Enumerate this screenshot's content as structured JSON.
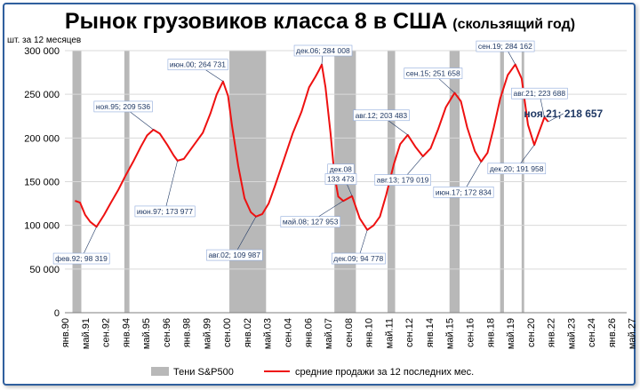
{
  "chart_data": {
    "type": "line",
    "title": "Рынок грузовиков класса 8 в США",
    "subtitle": "(скользящий год)",
    "ylabel": "шт. за 12 месяцев",
    "xlabel": "",
    "ylim": [
      0,
      300000
    ],
    "y_ticks": [
      "0",
      "50 000",
      "100 000",
      "150 000",
      "200 000",
      "250 000",
      "300 000"
    ],
    "x_range": [
      "1990-01",
      "2027-01"
    ],
    "x_ticks": [
      {
        "label": "янв.90",
        "date": "1990-01"
      },
      {
        "label": "май.91",
        "date": "1991-05"
      },
      {
        "label": "сен.92",
        "date": "1992-09"
      },
      {
        "label": "янв.94",
        "date": "1994-01"
      },
      {
        "label": "май.95",
        "date": "1995-05"
      },
      {
        "label": "сен.96",
        "date": "1996-09"
      },
      {
        "label": "янв.98",
        "date": "1998-01"
      },
      {
        "label": "май.99",
        "date": "1999-05"
      },
      {
        "label": "сен.00",
        "date": "2000-09"
      },
      {
        "label": "янв.02",
        "date": "2002-01"
      },
      {
        "label": "май.03",
        "date": "2003-05"
      },
      {
        "label": "сен.04",
        "date": "2004-09"
      },
      {
        "label": "янв.06",
        "date": "2006-01"
      },
      {
        "label": "май.07",
        "date": "2007-05"
      },
      {
        "label": "сен.08",
        "date": "2008-09"
      },
      {
        "label": "янв.10",
        "date": "2010-01"
      },
      {
        "label": "май.11",
        "date": "2011-05"
      },
      {
        "label": "сен.12",
        "date": "2012-09"
      },
      {
        "label": "янв.14",
        "date": "2014-01"
      },
      {
        "label": "май.15",
        "date": "2015-05"
      },
      {
        "label": "сен.16",
        "date": "2016-09"
      },
      {
        "label": "янв.18",
        "date": "2018-01"
      },
      {
        "label": "май.19",
        "date": "2019-05"
      },
      {
        "label": "сен.20",
        "date": "2020-09"
      },
      {
        "label": "янв.22",
        "date": "2022-01"
      },
      {
        "label": "май.23",
        "date": "2023-05"
      },
      {
        "label": "сен.24",
        "date": "2024-09"
      },
      {
        "label": "янв.26",
        "date": "2026-01"
      },
      {
        "label": "май.27",
        "date": "2027-05"
      }
    ],
    "grid": "horizontal",
    "legend_position": "bottom",
    "shade_color": "#b8b8b8",
    "line_color": "#ee1111",
    "annotation_color": "#1f3864",
    "shades": [
      {
        "from": "1990-07",
        "to": "1991-02"
      },
      {
        "from": "1993-12",
        "to": "1994-04"
      },
      {
        "from": "2000-11",
        "to": "2003-04"
      },
      {
        "from": "2007-10",
        "to": "2009-03"
      },
      {
        "from": "2011-04",
        "to": "2011-10"
      },
      {
        "from": "2015-05",
        "to": "2016-01"
      },
      {
        "from": "2018-09",
        "to": "2018-12"
      },
      {
        "from": "2020-02",
        "to": "2020-04"
      }
    ],
    "series": [
      {
        "name": "средние продажи за 12 последних мес.",
        "points": [
          [
            "1990-09",
            128000
          ],
          [
            "1991-01",
            126000
          ],
          [
            "1991-05",
            112000
          ],
          [
            "1991-09",
            104000
          ],
          [
            "1992-02",
            98319
          ],
          [
            "1992-08",
            112000
          ],
          [
            "1993-01",
            125000
          ],
          [
            "1993-07",
            140000
          ],
          [
            "1994-01",
            157000
          ],
          [
            "1994-07",
            173000
          ],
          [
            "1995-01",
            190000
          ],
          [
            "1995-06",
            203000
          ],
          [
            "1995-11",
            209536
          ],
          [
            "1996-04",
            205000
          ],
          [
            "1996-10",
            192000
          ],
          [
            "1997-03",
            180000
          ],
          [
            "1997-06",
            173977
          ],
          [
            "1997-11",
            176000
          ],
          [
            "1998-04",
            186000
          ],
          [
            "1998-09",
            196000
          ],
          [
            "1999-02",
            206000
          ],
          [
            "1999-08",
            228000
          ],
          [
            "2000-01",
            250000
          ],
          [
            "2000-06",
            264731
          ],
          [
            "2000-10",
            248000
          ],
          [
            "2001-01",
            215000
          ],
          [
            "2001-06",
            168000
          ],
          [
            "2001-11",
            131000
          ],
          [
            "2002-04",
            115000
          ],
          [
            "2002-08",
            109987
          ],
          [
            "2003-01",
            113000
          ],
          [
            "2003-06",
            125000
          ],
          [
            "2003-11",
            145000
          ],
          [
            "2004-06",
            175000
          ],
          [
            "2005-01",
            205000
          ],
          [
            "2005-08",
            230000
          ],
          [
            "2006-02",
            258000
          ],
          [
            "2006-07",
            270000
          ],
          [
            "2006-10",
            278000
          ],
          [
            "2006-12",
            284008
          ],
          [
            "2007-03",
            258000
          ],
          [
            "2007-07",
            205000
          ],
          [
            "2007-10",
            158000
          ],
          [
            "2008-01",
            133000
          ],
          [
            "2008-05",
            127953
          ],
          [
            "2008-12",
            133473
          ],
          [
            "2009-06",
            108000
          ],
          [
            "2009-12",
            94778
          ],
          [
            "2010-05",
            100000
          ],
          [
            "2010-10",
            110000
          ],
          [
            "2011-03",
            135000
          ],
          [
            "2011-09",
            170000
          ],
          [
            "2012-02",
            193000
          ],
          [
            "2012-08",
            203483
          ],
          [
            "2013-02",
            190000
          ],
          [
            "2013-08",
            179019
          ],
          [
            "2014-02",
            188000
          ],
          [
            "2014-08",
            210000
          ],
          [
            "2015-02",
            235000
          ],
          [
            "2015-09",
            251658
          ],
          [
            "2016-02",
            242000
          ],
          [
            "2016-07",
            212000
          ],
          [
            "2017-01",
            185000
          ],
          [
            "2017-06",
            172834
          ],
          [
            "2017-11",
            183000
          ],
          [
            "2018-04",
            212000
          ],
          [
            "2018-09",
            245000
          ],
          [
            "2019-03",
            272000
          ],
          [
            "2019-09",
            284162
          ],
          [
            "2020-02",
            268000
          ],
          [
            "2020-07",
            215000
          ],
          [
            "2020-12",
            191958
          ],
          [
            "2021-04",
            208000
          ],
          [
            "2021-08",
            223688
          ],
          [
            "2021-11",
            218657
          ]
        ]
      }
    ],
    "annotations": [
      {
        "text": "фев.92; 98 319",
        "date": "1992-02",
        "value": 98319,
        "label_date": "1991-02",
        "label_value": 62000
      },
      {
        "text": "ноя.95; 209 536",
        "date": "1995-11",
        "value": 209536,
        "label_date": "1993-11",
        "label_value": 236000
      },
      {
        "text": "июн.97; 173 977",
        "date": "1997-06",
        "value": 173977,
        "label_date": "1996-08",
        "label_value": 116000
      },
      {
        "text": "июн.00; 264 731",
        "date": "2000-06",
        "value": 264731,
        "label_date": "1998-10",
        "label_value": 284000
      },
      {
        "text": "авг.02; 109 987",
        "date": "2002-08",
        "value": 109987,
        "label_date": "2001-03",
        "label_value": 66000
      },
      {
        "text": "дек.06; 284 008",
        "date": "2006-12",
        "value": 284008,
        "label_date": "2007-01",
        "label_value": 300000
      },
      {
        "text": "май.08; 127 953",
        "date": "2008-05",
        "value": 127953,
        "label_date": "2006-03",
        "label_value": 104000
      },
      {
        "text": "дек.08",
        "date": "2008-12",
        "value": 133473,
        "label_date": "2008-03",
        "label_value": 164000
      },
      {
        "text": "133 473",
        "date": "",
        "value": null,
        "label_date": "2008-03",
        "label_value": 153000
      },
      {
        "text": "дек.09; 94 778",
        "date": "2009-12",
        "value": 94778,
        "label_date": "2009-05",
        "label_value": 62000
      },
      {
        "text": "авг.12; 203 483",
        "date": "2012-08",
        "value": 203483,
        "label_date": "2010-11",
        "label_value": 226000
      },
      {
        "text": "авг.13; 179 019",
        "date": "2013-08",
        "value": 179019,
        "label_date": "2012-04",
        "label_value": 152000
      },
      {
        "text": "сен.15; 251 658",
        "date": "2015-09",
        "value": 251658,
        "label_date": "2014-04",
        "label_value": 274000
      },
      {
        "text": "июн.17; 172 834",
        "date": "2017-06",
        "value": 172834,
        "label_date": "2016-04",
        "label_value": 138000
      },
      {
        "text": "сен.19; 284 162",
        "date": "2019-09",
        "value": 284162,
        "label_date": "2019-01",
        "label_value": 305000
      },
      {
        "text": "дек.20; 191 958",
        "date": "2020-12",
        "value": 191958,
        "label_date": "2019-10",
        "label_value": 165000
      },
      {
        "text": "авг.21; 223 688",
        "date": "2021-08",
        "value": 223688,
        "label_date": "2021-04",
        "label_value": 251000
      },
      {
        "text": "ноя.21; 218 657",
        "date": "2021-11",
        "value": 218657,
        "label_date": "2022-11",
        "label_value": 228000,
        "emphasis": true
      }
    ],
    "legend": {
      "shade_label": "Тени S&P500",
      "line_label": "средние продажи за 12 последних мес."
    }
  }
}
